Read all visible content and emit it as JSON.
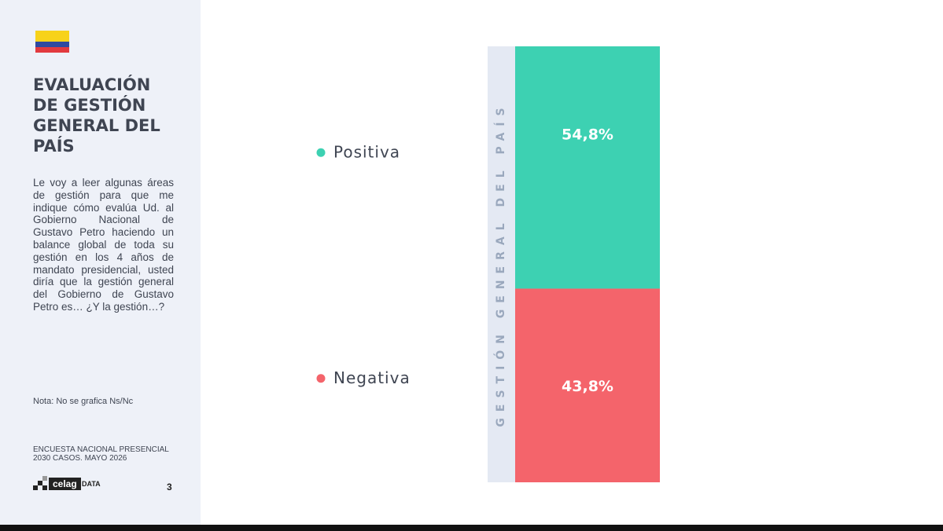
{
  "sidebar": {
    "title": "EVALUACIÓN DE GESTIÓN GENERAL DEL PAÍS",
    "question": "Le voy a leer algunas áreas de gestión para que me indique cómo evalúa Ud. al Gobierno Nacional de Gustavo Petro haciendo un balance global de toda su gestión en los 4 años de mandato presidencial, usted diría que la gestión general del Gobierno de Gustavo Petro es… ¿Y la gestión…?",
    "note": "Nota: No se grafica Ns/Nc",
    "survey_line1": "ENCUESTA NACIONAL PRESENCIAL",
    "survey_line2": "2030 CASOS. MAYO 2026",
    "logo": "celag",
    "logo_suffix": "DATA",
    "page": "3"
  },
  "chart_data": {
    "type": "stacked_bar",
    "categories": [
      "GESTIÓN GENERAL DEL PAÍS"
    ],
    "series": [
      {
        "name": "Positiva",
        "color": "#3dd1b2",
        "values": [
          54.8
        ],
        "value_labels": [
          "54,8%"
        ]
      },
      {
        "name": "Negativa",
        "color": "#f4646b",
        "values": [
          43.8
        ],
        "value_labels": [
          "43,8%"
        ]
      }
    ]
  }
}
